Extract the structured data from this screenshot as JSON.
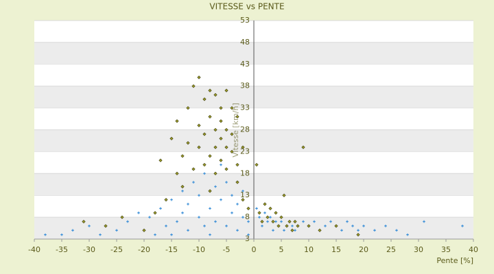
{
  "chart_data": {
    "type": "scatter",
    "title": "VITESSE vs PENTE",
    "x_label": "Pente [%]",
    "y_label": "Vitesse [km/h]",
    "xlim": [
      -40,
      40
    ],
    "xticks": [
      -40,
      -35,
      -30,
      -25,
      -20,
      -15,
      -10,
      -5,
      0,
      5,
      10,
      15,
      20,
      25,
      30,
      35,
      40
    ],
    "ylim": [
      3,
      53
    ],
    "yticks": [
      3,
      8,
      13,
      18,
      23,
      28,
      33,
      38,
      43,
      48,
      53
    ],
    "grid": true,
    "series": [
      {
        "color": "#3b8fd8",
        "marker": "plus",
        "x": [
          -38,
          -35,
          -33,
          -30,
          -28,
          -25,
          -23,
          -21,
          -20,
          -19,
          -18,
          -17,
          -16,
          -15,
          -15,
          -14,
          -13,
          -13,
          -12,
          -12,
          -11,
          -10,
          -10,
          -9,
          -9,
          -8,
          -8,
          -7,
          -7,
          -6,
          -6,
          -5,
          -5,
          -4,
          -4,
          -3,
          -3,
          -2,
          -2,
          -1,
          -1,
          0.5,
          1,
          1.5,
          2,
          2.5,
          3,
          3.5,
          4,
          4.5,
          5,
          5.5,
          6,
          6.5,
          7,
          7.5,
          8,
          9,
          10,
          11,
          12,
          13,
          14,
          15,
          16,
          17,
          18,
          19,
          20,
          22,
          24,
          26,
          28,
          31,
          38
        ],
        "values": [
          4,
          4,
          5,
          6,
          4,
          5,
          7,
          9,
          5,
          8,
          4,
          10,
          6,
          12,
          4,
          7,
          9,
          14,
          5,
          11,
          16,
          8,
          13,
          6,
          18,
          10,
          4,
          15,
          7,
          12,
          20,
          6,
          16,
          9,
          13,
          5,
          11,
          8,
          14,
          4,
          7,
          10,
          8,
          6,
          9,
          7,
          8,
          5,
          7,
          6,
          7,
          5,
          6,
          7,
          6,
          5,
          6,
          7,
          6,
          7,
          5,
          6,
          7,
          6,
          5,
          7,
          6,
          5,
          6,
          5,
          6,
          5,
          4,
          7,
          6
        ]
      },
      {
        "color": "#9a9a2a",
        "marker": "diamond",
        "x": [
          -31,
          -27,
          -24,
          -20,
          -18,
          -17,
          -16,
          -15,
          -14,
          -14,
          -13,
          -13,
          -12,
          -12,
          -11,
          -11,
          -10,
          -10,
          -10,
          -9,
          -9,
          -9,
          -8,
          -8,
          -8,
          -8,
          -7,
          -7,
          -7,
          -7,
          -6,
          -6,
          -6,
          -6,
          -5,
          -5,
          -5,
          -5,
          -4,
          -4,
          -4,
          -3,
          -3,
          -3,
          -2,
          -2,
          -1,
          0.5,
          1,
          1.5,
          2,
          2.5,
          3,
          3.5,
          4,
          4.5,
          5,
          5.5,
          6,
          6.5,
          7,
          7.5,
          8,
          9,
          10,
          12,
          15,
          19
        ],
        "values": [
          7,
          6,
          8,
          5,
          9,
          21,
          12,
          26,
          18,
          30,
          22,
          15,
          33,
          25,
          19,
          38,
          29,
          40,
          24,
          35,
          27,
          20,
          31,
          37,
          22,
          14,
          36,
          28,
          24,
          18,
          33,
          26,
          21,
          30,
          37,
          28,
          24,
          19,
          33,
          23,
          27,
          20,
          31,
          16,
          24,
          12,
          10,
          20,
          9,
          7,
          11,
          8,
          10,
          7,
          9,
          6,
          8,
          13,
          6,
          7,
          5,
          7,
          6,
          24,
          6,
          5,
          6,
          4
        ]
      }
    ]
  }
}
